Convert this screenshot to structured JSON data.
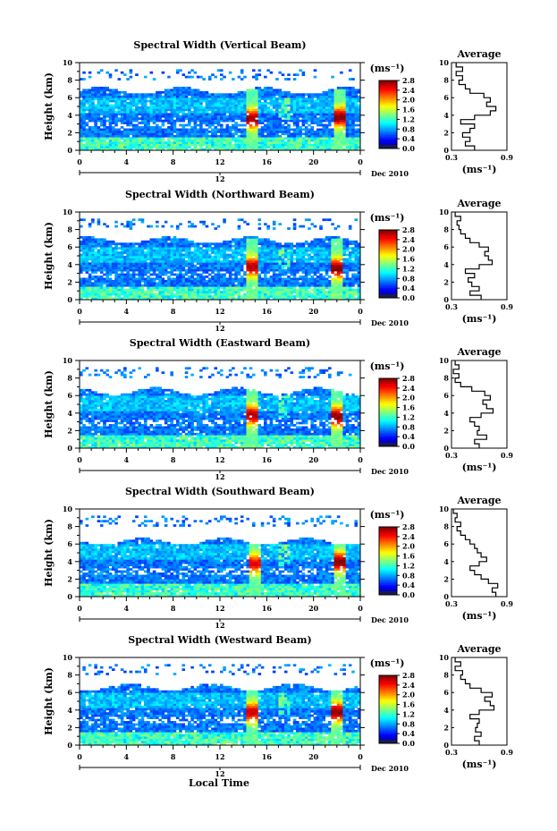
{
  "figure": {
    "x_axis_title": "Local Time",
    "date_label": "Dec 2010",
    "unit_label": "(ms⁻¹)",
    "average_title": "Average"
  },
  "chart_data": [
    {
      "type": "heatmap",
      "title": "Spectral Width (Vertical Beam)",
      "xlabel": "",
      "ylabel": "Height (km)",
      "xlim": [
        0,
        24
      ],
      "ylim": [
        0,
        10
      ],
      "x_ticks": [
        "0",
        "4",
        "8",
        "12",
        "16",
        "20",
        "0"
      ],
      "y_ticks": [
        "0",
        "2",
        "4",
        "6",
        "8",
        "10"
      ],
      "date_ticks": [
        "12"
      ],
      "colorbar": {
        "range": [
          0.0,
          2.8
        ],
        "ticks": [
          "0.0",
          "0.4",
          "0.8",
          "1.2",
          "1.6",
          "2.0",
          "2.4",
          "2.8"
        ]
      },
      "cloud_top_km": 6.8,
      "hotspots": [
        {
          "t": 14.8,
          "h": 3.6,
          "v": 2.6
        },
        {
          "t": 22.2,
          "h": 3.8,
          "v": 2.7
        }
      ]
    },
    {
      "type": "line",
      "title": "Average",
      "xlabel": "(ms⁻¹)",
      "ylabel": "",
      "xlim": [
        0.3,
        0.9
      ],
      "ylim": [
        0,
        10
      ],
      "x_ticks": [
        "0.3",
        "0.9"
      ],
      "y_ticks": [
        "0",
        "2",
        "4",
        "6",
        "8",
        "10"
      ],
      "h": [
        0,
        0.5,
        1,
        1.5,
        2,
        2.5,
        3,
        3.5,
        4,
        4.5,
        5,
        5.5,
        6,
        6.5,
        7,
        7.5,
        8,
        8.5,
        9,
        9.5
      ],
      "v": [
        0.55,
        0.45,
        0.5,
        0.42,
        0.5,
        0.55,
        0.4,
        0.55,
        0.72,
        0.78,
        0.68,
        0.72,
        0.65,
        0.5,
        0.45,
        0.38,
        0.42,
        0.35,
        0.42,
        0.35
      ]
    },
    {
      "type": "heatmap",
      "title": "Spectral Width (Northward Beam)",
      "xlabel": "",
      "ylabel": "Height (km)",
      "xlim": [
        0,
        24
      ],
      "ylim": [
        0,
        10
      ],
      "x_ticks": [
        "0",
        "4",
        "8",
        "12",
        "16",
        "20",
        "0"
      ],
      "y_ticks": [
        "0",
        "2",
        "4",
        "6",
        "8",
        "10"
      ],
      "date_ticks": [
        "12"
      ],
      "colorbar": {
        "range": [
          0.0,
          2.8
        ],
        "ticks": [
          "0.0",
          "0.4",
          "0.8",
          "1.2",
          "1.6",
          "2.0",
          "2.4",
          "2.8"
        ]
      },
      "cloud_top_km": 6.8,
      "hotspots": [
        {
          "t": 14.8,
          "h": 3.8,
          "v": 2.6
        },
        {
          "t": 22.0,
          "h": 3.6,
          "v": 2.7
        }
      ]
    },
    {
      "type": "line",
      "title": "Average",
      "xlabel": "(ms⁻¹)",
      "ylabel": "",
      "xlim": [
        0.3,
        0.9
      ],
      "ylim": [
        0,
        10
      ],
      "x_ticks": [
        "0.3",
        "0.9"
      ],
      "y_ticks": [
        "0",
        "2",
        "4",
        "6",
        "8",
        "10"
      ],
      "h": [
        0,
        0.5,
        1,
        1.5,
        2,
        2.5,
        3,
        3.5,
        4,
        4.5,
        5,
        5.5,
        6,
        6.5,
        7,
        7.5,
        8,
        8.5,
        9,
        9.5
      ],
      "v": [
        0.62,
        0.5,
        0.6,
        0.52,
        0.48,
        0.55,
        0.45,
        0.6,
        0.74,
        0.7,
        0.66,
        0.7,
        0.6,
        0.5,
        0.45,
        0.4,
        0.38,
        0.36,
        0.4,
        0.34
      ]
    },
    {
      "type": "heatmap",
      "title": "Spectral Width (Eastward Beam)",
      "xlabel": "",
      "ylabel": "Height (km)",
      "xlim": [
        0,
        24
      ],
      "ylim": [
        0,
        10
      ],
      "x_ticks": [
        "0",
        "4",
        "8",
        "12",
        "16",
        "20",
        "0"
      ],
      "y_ticks": [
        "0",
        "2",
        "4",
        "6",
        "8",
        "10"
      ],
      "date_ticks": [
        "12"
      ],
      "colorbar": {
        "range": [
          0.0,
          2.8
        ],
        "ticks": [
          "0.0",
          "0.4",
          "0.8",
          "1.2",
          "1.6",
          "2.0",
          "2.4",
          "2.8"
        ]
      },
      "cloud_top_km": 6.5,
      "hotspots": [
        {
          "t": 14.8,
          "h": 3.8,
          "v": 2.6
        },
        {
          "t": 22.1,
          "h": 3.6,
          "v": 2.7
        }
      ]
    },
    {
      "type": "line",
      "title": "Average",
      "xlabel": "(ms⁻¹)",
      "ylabel": "",
      "xlim": [
        0.3,
        0.9
      ],
      "ylim": [
        0,
        10
      ],
      "x_ticks": [
        "0.3",
        "0.9"
      ],
      "y_ticks": [
        "0",
        "2",
        "4",
        "6",
        "8",
        "10"
      ],
      "h": [
        0,
        0.5,
        1,
        1.5,
        2,
        2.5,
        3,
        3.5,
        4,
        4.5,
        5,
        5.5,
        6,
        6.5,
        7,
        7.5,
        8,
        8.5,
        9,
        9.5
      ],
      "v": [
        0.6,
        0.55,
        0.68,
        0.58,
        0.6,
        0.55,
        0.5,
        0.62,
        0.75,
        0.68,
        0.64,
        0.72,
        0.66,
        0.52,
        0.4,
        0.34,
        0.38,
        0.32,
        0.38,
        0.34
      ]
    },
    {
      "type": "heatmap",
      "title": "Spectral Width (Southward Beam)",
      "xlabel": "",
      "ylabel": "Height (km)",
      "xlim": [
        0,
        24
      ],
      "ylim": [
        0,
        10
      ],
      "x_ticks": [
        "0",
        "4",
        "8",
        "12",
        "16",
        "20",
        "0"
      ],
      "y_ticks": [
        "0",
        "2",
        "4",
        "6",
        "8",
        "10"
      ],
      "date_ticks": [
        "12"
      ],
      "colorbar": {
        "range": [
          0.0,
          2.8
        ],
        "ticks": [
          "0.0",
          "0.4",
          "0.8",
          "1.2",
          "1.6",
          "2.0",
          "2.4",
          "2.8"
        ]
      },
      "cloud_top_km": 6.3,
      "hotspots": [
        {
          "t": 14.9,
          "h": 3.8,
          "v": 2.4
        },
        {
          "t": 22.2,
          "h": 4.0,
          "v": 2.7
        }
      ]
    },
    {
      "type": "line",
      "title": "Average",
      "xlabel": "(ms⁻¹)",
      "ylabel": "",
      "xlim": [
        0.3,
        0.9
      ],
      "ylim": [
        0,
        10
      ],
      "x_ticks": [
        "0.3",
        "0.9"
      ],
      "y_ticks": [
        "0",
        "2",
        "4",
        "6",
        "8",
        "10"
      ],
      "h": [
        0,
        0.5,
        1,
        1.5,
        2,
        2.5,
        3,
        3.5,
        4,
        4.5,
        5,
        5.5,
        6,
        6.5,
        7,
        7.5,
        8,
        8.5,
        9,
        9.5
      ],
      "v": [
        0.78,
        0.74,
        0.8,
        0.7,
        0.62,
        0.55,
        0.5,
        0.6,
        0.68,
        0.62,
        0.58,
        0.55,
        0.5,
        0.45,
        0.4,
        0.36,
        0.4,
        0.34,
        0.36,
        0.32
      ]
    },
    {
      "type": "heatmap",
      "title": "Spectral Width (Westward Beam)",
      "xlabel": "Local Time",
      "ylabel": "Height (km)",
      "xlim": [
        0,
        24
      ],
      "ylim": [
        0,
        10
      ],
      "x_ticks": [
        "0",
        "4",
        "8",
        "12",
        "16",
        "20",
        "0"
      ],
      "y_ticks": [
        "0",
        "2",
        "4",
        "6",
        "8",
        "10"
      ],
      "date_ticks": [
        "12"
      ],
      "colorbar": {
        "range": [
          0.0,
          2.8
        ],
        "ticks": [
          "0.0",
          "0.4",
          "0.8",
          "1.2",
          "1.6",
          "2.0",
          "2.4",
          "2.8"
        ]
      },
      "cloud_top_km": 6.6,
      "hotspots": [
        {
          "t": 14.8,
          "h": 3.8,
          "v": 2.5
        },
        {
          "t": 22.1,
          "h": 3.8,
          "v": 2.7
        }
      ]
    },
    {
      "type": "line",
      "title": "Average",
      "xlabel": "(ms⁻¹)",
      "ylabel": "",
      "xlim": [
        0.3,
        0.9
      ],
      "ylim": [
        0,
        10
      ],
      "x_ticks": [
        "0.3",
        "0.9"
      ],
      "y_ticks": [
        "0",
        "2",
        "4",
        "6",
        "8",
        "10"
      ],
      "h": [
        0,
        0.5,
        1,
        1.5,
        2,
        2.5,
        3,
        3.5,
        4,
        4.5,
        5,
        5.5,
        6,
        6.5,
        7,
        7.5,
        8,
        8.5,
        9,
        9.5
      ],
      "v": [
        0.6,
        0.55,
        0.62,
        0.56,
        0.58,
        0.6,
        0.5,
        0.6,
        0.76,
        0.72,
        0.66,
        0.74,
        0.62,
        0.5,
        0.45,
        0.4,
        0.42,
        0.34,
        0.4,
        0.34
      ]
    }
  ]
}
